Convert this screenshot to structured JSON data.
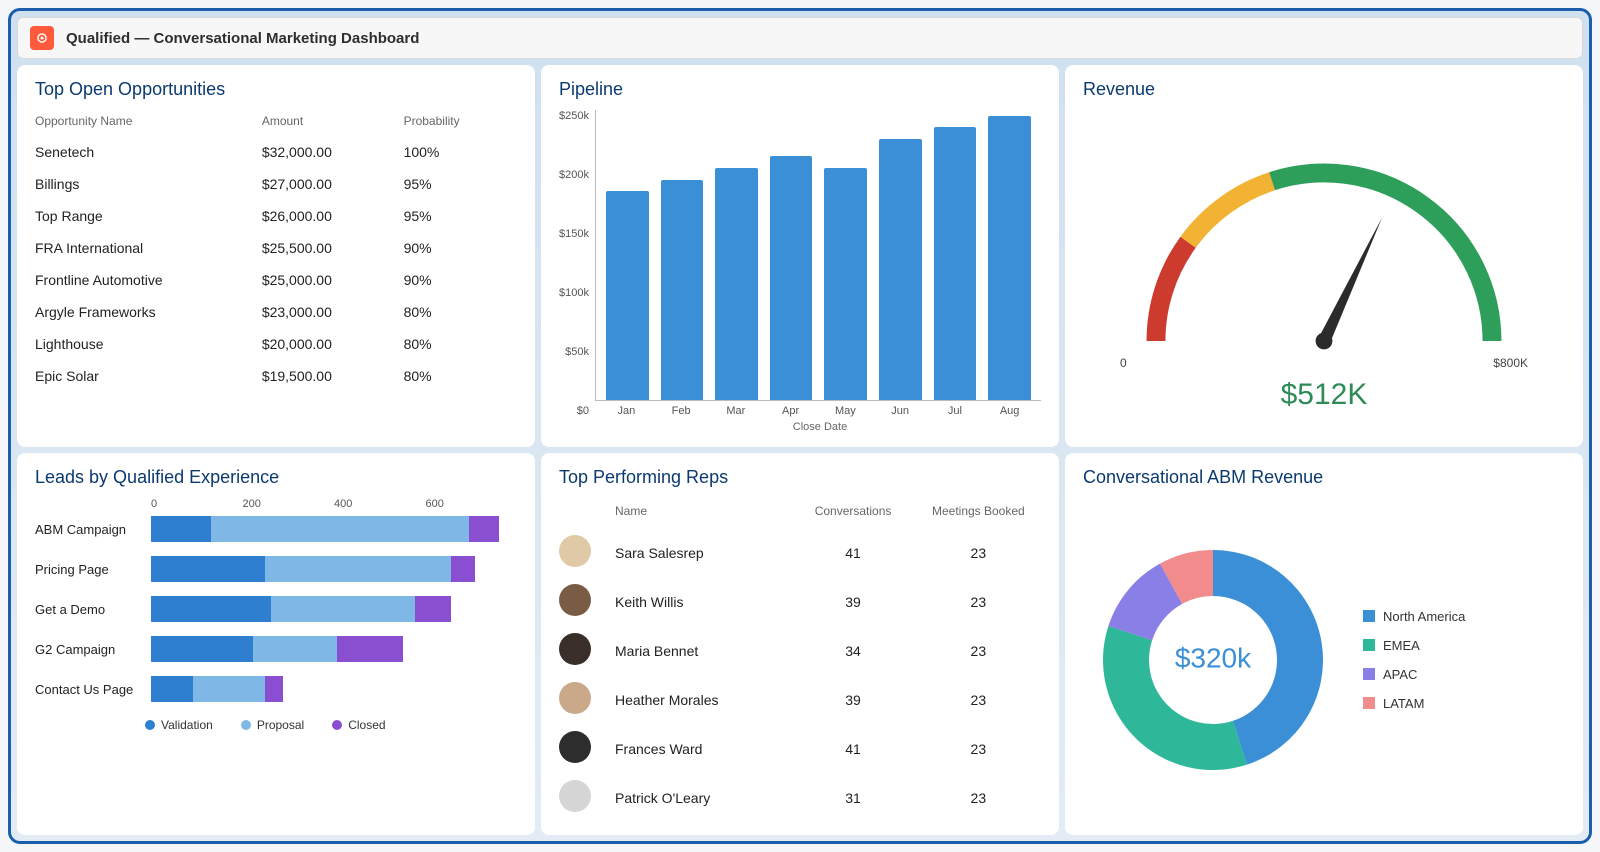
{
  "header": {
    "title": "Qualified — Conversational Marketing Dashboard",
    "logo_bg": "#ff5a3c",
    "logo_fg": "#ffffff"
  },
  "layout": {
    "frame_border": "#1b5faa",
    "card_bg": "#ffffff",
    "title_color": "#0b3a6f"
  },
  "opportunities": {
    "title": "Top Open Opportunities",
    "columns": [
      "Opportunity Name",
      "Amount",
      "Probability"
    ],
    "rows": [
      {
        "name": "Senetech",
        "amount": "$32,000.00",
        "probability": "100%"
      },
      {
        "name": "Billings",
        "amount": "$27,000.00",
        "probability": "95%"
      },
      {
        "name": "Top Range",
        "amount": "$26,000.00",
        "probability": "95%"
      },
      {
        "name": "FRA International",
        "amount": "$25,500.00",
        "probability": "90%"
      },
      {
        "name": "Frontline Automotive",
        "amount": "$25,000.00",
        "probability": "90%"
      },
      {
        "name": "Argyle Frameworks",
        "amount": "$23,000.00",
        "probability": "80%"
      },
      {
        "name": "Lighthouse",
        "amount": "$20,000.00",
        "probability": "80%"
      },
      {
        "name": "Epic Solar",
        "amount": "$19,500.00",
        "probability": "80%"
      }
    ]
  },
  "pipeline": {
    "title": "Pipeline",
    "type": "bar",
    "categories": [
      "Jan",
      "Feb",
      "Mar",
      "Apr",
      "May",
      "Jun",
      "Jul",
      "Aug"
    ],
    "values": [
      180,
      190,
      200,
      210,
      200,
      225,
      235,
      245
    ],
    "ylim": [
      0,
      250
    ],
    "ytick_labels": [
      "$250k",
      "$200k",
      "$150k",
      "$100k",
      "$50k",
      "$0"
    ],
    "bar_color": "#3b8fd6",
    "axis_color": "#bbbbbb",
    "x_axis_title": "Close Date"
  },
  "revenue_gauge": {
    "title": "Revenue",
    "type": "gauge",
    "min_label": "0",
    "max_label": "$800K",
    "min": 0,
    "max": 800,
    "value": 512,
    "value_label": "$512K",
    "value_color": "#2e8b57",
    "segments": [
      {
        "from": 0,
        "to": 160,
        "color": "#cc3b2e"
      },
      {
        "from": 160,
        "to": 320,
        "color": "#f2b233"
      },
      {
        "from": 320,
        "to": 800,
        "color": "#2e9e5b"
      }
    ],
    "needle_color": "#2b2b2b",
    "arc_width": 18
  },
  "leads": {
    "title": "Leads by Qualified Experience",
    "type": "stacked-hbar",
    "x_ticks": [
      "0",
      "200",
      "400",
      "600"
    ],
    "x_max": 600,
    "series": [
      {
        "key": "validation",
        "label": "Validation",
        "color": "#2f7fd1"
      },
      {
        "key": "proposal",
        "label": "Proposal",
        "color": "#7fb7e6"
      },
      {
        "key": "closed",
        "label": "Closed",
        "color": "#8a4fd1"
      }
    ],
    "rows": [
      {
        "label": "ABM Campaign",
        "validation": 100,
        "proposal": 430,
        "closed": 50
      },
      {
        "label": "Pricing Page",
        "validation": 190,
        "proposal": 310,
        "closed": 40
      },
      {
        "label": "Get a Demo",
        "validation": 200,
        "proposal": 240,
        "closed": 60
      },
      {
        "label": "G2 Campaign",
        "validation": 170,
        "proposal": 140,
        "closed": 110
      },
      {
        "label": "Contact Us Page",
        "validation": 70,
        "proposal": 120,
        "closed": 30
      }
    ]
  },
  "reps": {
    "title": "Top Performing Reps",
    "columns": [
      "",
      "Name",
      "Conversations",
      "Meetings Booked"
    ],
    "rows": [
      {
        "name": "Sara Salesrep",
        "conversations": 41,
        "meetings": 23,
        "avatar_bg": "#e0c9a6"
      },
      {
        "name": "Keith Willis",
        "conversations": 39,
        "meetings": 23,
        "avatar_bg": "#7a5c44"
      },
      {
        "name": "Maria Bennet",
        "conversations": 34,
        "meetings": 23,
        "avatar_bg": "#3a2e2a"
      },
      {
        "name": "Heather Morales",
        "conversations": 39,
        "meetings": 23,
        "avatar_bg": "#c9a98a"
      },
      {
        "name": "Frances Ward",
        "conversations": 41,
        "meetings": 23,
        "avatar_bg": "#2d2d2d"
      },
      {
        "name": "Patrick O'Leary",
        "conversations": 31,
        "meetings": 23,
        "avatar_bg": "#d6d6d6"
      }
    ]
  },
  "abm_revenue": {
    "title": "Conversational ABM Revenue",
    "type": "donut",
    "center_label": "$320k",
    "center_color": "#3b8fd6",
    "slices": [
      {
        "label": "North America",
        "value": 45,
        "color": "#3b8fd6"
      },
      {
        "label": "EMEA",
        "value": 35,
        "color": "#2fb79a"
      },
      {
        "label": "APAC",
        "value": 12,
        "color": "#8a7fe6"
      },
      {
        "label": "LATAM",
        "value": 8,
        "color": "#f28b8b"
      }
    ],
    "ring_width": 46
  }
}
